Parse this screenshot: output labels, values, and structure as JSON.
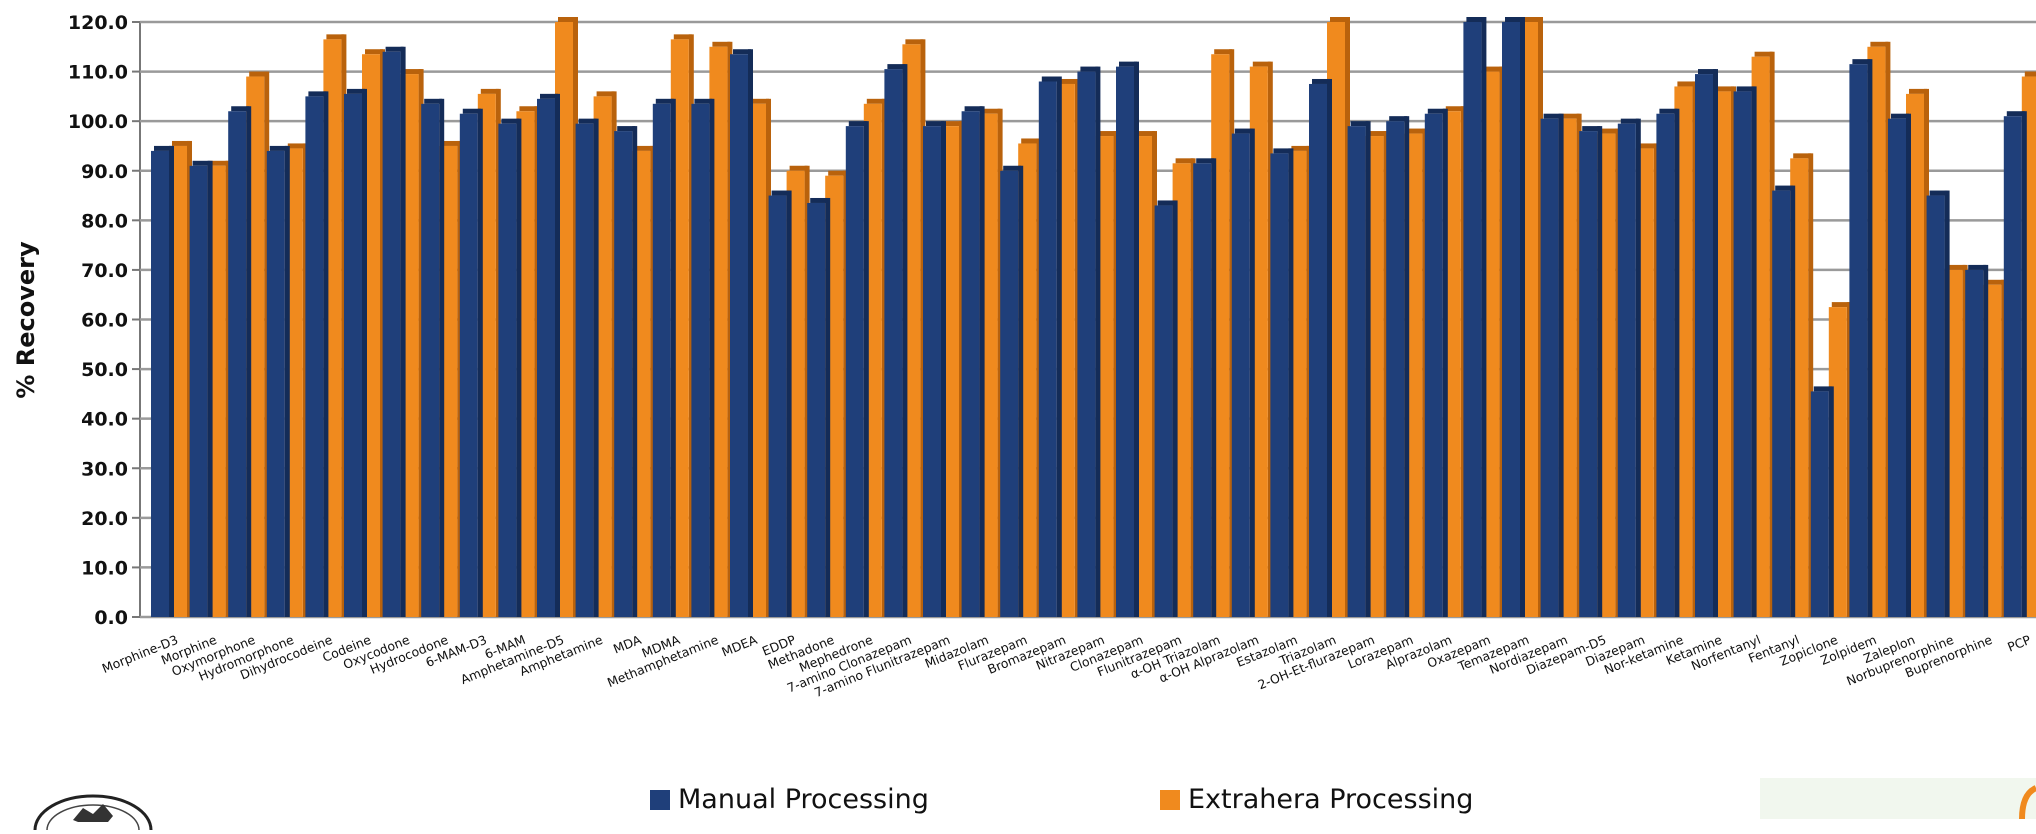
{
  "colors": {
    "manual": "#1f3f7a",
    "extrahera": "#f08a1e",
    "grid": "#9a9a9a"
  },
  "legend": {
    "manual_label": "Manual Processing",
    "extrahera_label": "Extrahera Processing"
  },
  "logos": {
    "left": "university-seal-icon",
    "right": "brand-logo-icon"
  },
  "chart_data": {
    "type": "bar",
    "title": "",
    "xlabel": "",
    "ylabel": "% Recovery",
    "ylim": [
      0,
      120
    ],
    "yticks": [
      "0.0",
      "10.0",
      "20.0",
      "30.0",
      "40.0",
      "50.0",
      "60.0",
      "70.0",
      "80.0",
      "90.0",
      "100.0",
      "110.0",
      "120.0"
    ],
    "grid": true,
    "legend_position": "bottom",
    "categories": [
      "Morphine-D3",
      "Morphine",
      "Oxymorphone",
      "Hydromorphone",
      "Dihydrocodeine",
      "Codeine",
      "Oxycodone",
      "Hydrocodone",
      "6-MAM-D3",
      "6-MAM",
      "Amphetamine-D5",
      "Amphetamine",
      "MDA",
      "MDMA",
      "Methamphetamine",
      "MDEA",
      "EDDP",
      "Methadone",
      "Mephedrone",
      "7-amino Clonazepam",
      "7-amino Flunitrazepam",
      "Midazolam",
      "Flurazepam",
      "Bromazepam",
      "Nitrazepam",
      "Clonazepam",
      "Flunitrazepam",
      "α-OH Triazolam",
      "α-OH Alprazolam",
      "Estazolam",
      "Triazolam",
      "2-OH-Et-flurazepam",
      "Lorazepam",
      "Alprazolam",
      "Oxazepam",
      "Temazepam",
      "Nordiazepam",
      "Diazepam-D5",
      "Diazepam",
      "Nor-ketamine",
      "Ketamine",
      "Norfentanyl",
      "Fentanyl",
      "Zopiclone",
      "Zolpidem",
      "Zaleplon",
      "Norbuprenorphine",
      "Buprenorphine",
      "PCP"
    ],
    "series": [
      {
        "name": "Manual Processing",
        "values": [
          94,
          91,
          102,
          94,
          105,
          105.5,
          114,
          103.5,
          101.5,
          99.5,
          104.5,
          99.5,
          98,
          103.5,
          103.5,
          113.5,
          85,
          83.5,
          99,
          110.5,
          99,
          102,
          90,
          108,
          110,
          111,
          83,
          91.5,
          97.5,
          93.5,
          107.5,
          99,
          100,
          101.5,
          120,
          120,
          100.5,
          98,
          99.5,
          101.5,
          109.5,
          106,
          86,
          45.5,
          111.5,
          100.5,
          85,
          70,
          101
        ]
      },
      {
        "name": "Extrahera Processing",
        "values": [
          95,
          91,
          109,
          94.5,
          116.5,
          113.5,
          109.5,
          95,
          105.5,
          102,
          120,
          105,
          94,
          116.5,
          115,
          103.5,
          90,
          89,
          103.5,
          115.5,
          99,
          101.5,
          95.5,
          107.5,
          97,
          97,
          91.5,
          113.5,
          111,
          94,
          120,
          97,
          97.5,
          102,
          110,
          120,
          100.5,
          97.5,
          94.5,
          107,
          106,
          113,
          92.5,
          62.5,
          115,
          105.5,
          70,
          67,
          109
        ]
      }
    ]
  }
}
